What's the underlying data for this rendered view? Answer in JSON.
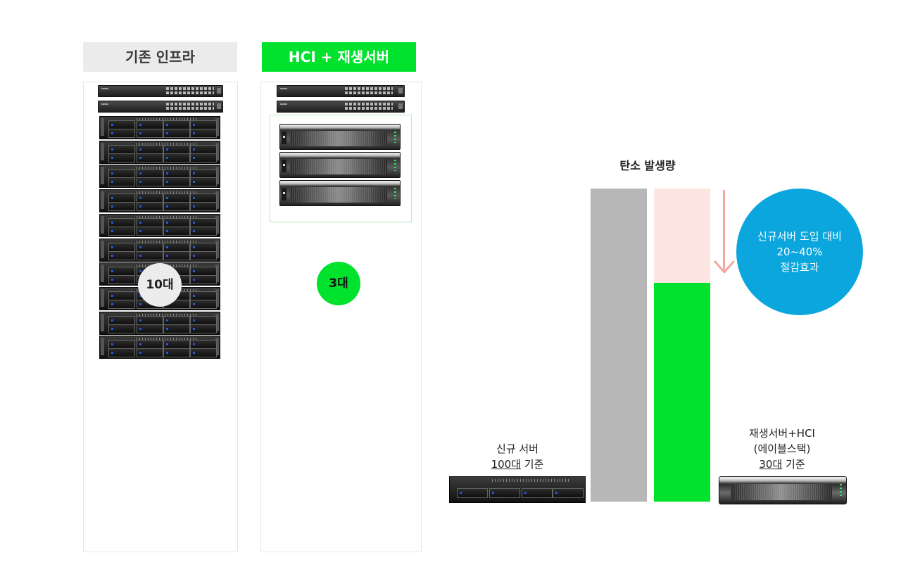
{
  "legacy": {
    "header": "기존 인프라",
    "count_label": "10대",
    "switch_count": 2,
    "server_count": 10
  },
  "hci": {
    "header": "HCI + 재생서버",
    "count_label": "3대",
    "switch_count": 2,
    "appliance_count": 3
  },
  "emission_chart": {
    "title": "탄소 발생량",
    "saving_label": {
      "line1": "신규서버 도입 대비",
      "line2": "20~40%",
      "line3": "절감효과"
    },
    "left_caption": {
      "line1": "신규 서버",
      "line2_count": "100대",
      "line2_suffix": " 기준"
    },
    "right_caption": {
      "line1": "재생서버+HCI",
      "line2": "(에이블스택)",
      "line3_count": "30대",
      "line3_suffix": " 기준"
    },
    "colors": {
      "baseline": "#b7b7b7",
      "reduction": "#fde6e1",
      "after": "#00e22c",
      "arrow": "#f4a7a3",
      "saving_circle": "#0aa6dd"
    }
  },
  "chart_data": {
    "type": "bar",
    "categories": [
      "신규 서버 100대 기준",
      "재생서버+HCI 30대 기준"
    ],
    "series": [
      {
        "values": [
          1.0,
          0.7
        ]
      }
    ],
    "reduction_share": 0.3,
    "title": "탄소 발생량"
  }
}
